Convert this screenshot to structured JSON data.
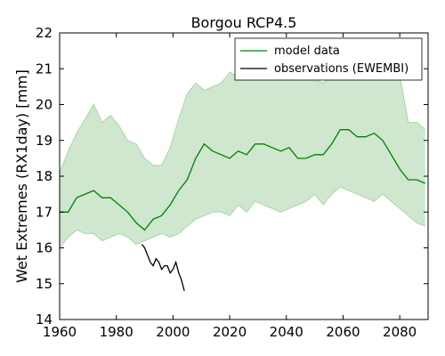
{
  "chart_data": {
    "type": "line",
    "title": "Borgou RCP4.5",
    "xlabel": "",
    "ylabel": "Wet Extremes (RX1day) [mm]",
    "xlim": [
      1960,
      2090
    ],
    "ylim": [
      14,
      22
    ],
    "x_ticks": [
      1960,
      1980,
      2000,
      2020,
      2040,
      2060,
      2080
    ],
    "y_ticks": [
      14,
      15,
      16,
      17,
      18,
      19,
      20,
      21,
      22
    ],
    "grid": false,
    "legend_position": "top-right",
    "colors": {
      "model": "#008000",
      "band_fill": "#cfe7cf",
      "band_edge": "#a9d4a9",
      "observations": "#000000"
    },
    "series": [
      {
        "name": "model data",
        "kind": "median",
        "x": [
          1960,
          1963,
          1966,
          1969,
          1972,
          1975,
          1978,
          1981,
          1984,
          1987,
          1990,
          1993,
          1996,
          1999,
          2002,
          2005,
          2008,
          2011,
          2014,
          2017,
          2020,
          2023,
          2026,
          2029,
          2032,
          2035,
          2038,
          2041,
          2044,
          2047,
          2050,
          2053,
          2056,
          2059,
          2062,
          2065,
          2068,
          2071,
          2074,
          2077,
          2080,
          2083,
          2086,
          2089
        ],
        "y": [
          17.0,
          17.0,
          17.4,
          17.5,
          17.6,
          17.4,
          17.4,
          17.2,
          17.0,
          16.7,
          16.5,
          16.8,
          16.9,
          17.2,
          17.6,
          17.9,
          18.5,
          18.9,
          18.7,
          18.6,
          18.5,
          18.7,
          18.6,
          18.9,
          18.9,
          18.8,
          18.7,
          18.8,
          18.5,
          18.5,
          18.6,
          18.6,
          18.9,
          19.3,
          19.3,
          19.1,
          19.1,
          19.2,
          19.0,
          18.6,
          18.2,
          17.9,
          17.9,
          17.8
        ]
      },
      {
        "name": "model range (upper)",
        "kind": "band_upper",
        "x": [
          1960,
          1963,
          1966,
          1969,
          1972,
          1975,
          1978,
          1981,
          1984,
          1987,
          1990,
          1993,
          1996,
          1999,
          2002,
          2005,
          2008,
          2011,
          2014,
          2017,
          2020,
          2023,
          2026,
          2029,
          2032,
          2035,
          2038,
          2041,
          2044,
          2047,
          2050,
          2053,
          2056,
          2059,
          2062,
          2065,
          2068,
          2071,
          2074,
          2077,
          2080,
          2083,
          2086,
          2089
        ],
        "y": [
          18.1,
          18.7,
          19.2,
          19.6,
          20.0,
          19.5,
          19.7,
          19.4,
          19.0,
          18.9,
          18.5,
          18.3,
          18.3,
          18.8,
          19.6,
          20.3,
          20.6,
          20.4,
          20.5,
          20.6,
          20.9,
          20.8,
          20.7,
          21.0,
          21.1,
          21.1,
          21.0,
          20.9,
          20.7,
          20.8,
          20.7,
          20.6,
          20.8,
          20.9,
          21.0,
          21.3,
          21.2,
          21.5,
          21.6,
          21.2,
          20.8,
          19.5,
          19.5,
          19.3
        ]
      },
      {
        "name": "model range (lower)",
        "kind": "band_lower",
        "x": [
          1960,
          1963,
          1966,
          1969,
          1972,
          1975,
          1978,
          1981,
          1984,
          1987,
          1990,
          1993,
          1996,
          1999,
          2002,
          2005,
          2008,
          2011,
          2014,
          2017,
          2020,
          2023,
          2026,
          2029,
          2032,
          2035,
          2038,
          2041,
          2044,
          2047,
          2050,
          2053,
          2056,
          2059,
          2062,
          2065,
          2068,
          2071,
          2074,
          2077,
          2080,
          2083,
          2086,
          2089
        ],
        "y": [
          16.0,
          16.3,
          16.5,
          16.4,
          16.4,
          16.2,
          16.3,
          16.4,
          16.3,
          16.1,
          16.2,
          16.3,
          16.4,
          16.3,
          16.4,
          16.6,
          16.8,
          16.9,
          17.0,
          17.0,
          16.9,
          17.2,
          17.0,
          17.3,
          17.2,
          17.1,
          17.0,
          17.1,
          17.2,
          17.3,
          17.5,
          17.2,
          17.5,
          17.7,
          17.6,
          17.5,
          17.4,
          17.3,
          17.5,
          17.3,
          17.1,
          16.9,
          16.7,
          16.6
        ]
      },
      {
        "name": "observations (EWEMBI)",
        "kind": "observations",
        "x": [
          1989,
          1990,
          1991,
          1992,
          1993,
          1994,
          1995,
          1996,
          1997,
          1998,
          1999,
          2000,
          2001,
          2002,
          2003,
          2004
        ],
        "y": [
          16.1,
          16.0,
          15.8,
          15.6,
          15.5,
          15.7,
          15.6,
          15.4,
          15.5,
          15.5,
          15.3,
          15.4,
          15.6,
          15.3,
          15.1,
          14.8
        ]
      }
    ]
  }
}
